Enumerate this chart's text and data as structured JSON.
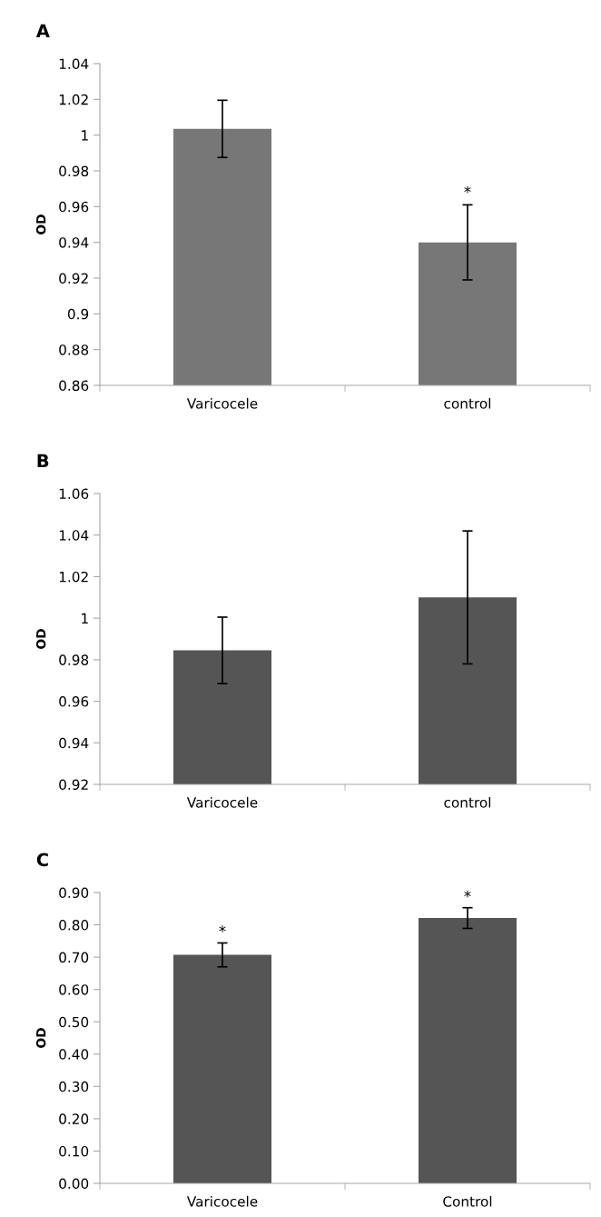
{
  "chart_data": [
    {
      "type": "bar",
      "title": "A",
      "ylabel": "OD",
      "categories": [
        "Varicocele",
        "control"
      ],
      "values": [
        1.0035,
        0.94
      ],
      "errors": [
        0.016,
        0.021
      ],
      "color": "#777777",
      "ylim": [
        0.86,
        1.04
      ],
      "yticks": [
        {
          "value": 0.86,
          "label": "0.86"
        },
        {
          "value": 0.88,
          "label": "0.88"
        },
        {
          "value": 0.9,
          "label": "0.9"
        },
        {
          "value": 0.92,
          "label": "0.92"
        },
        {
          "value": 0.94,
          "label": "0.94"
        },
        {
          "value": 0.96,
          "label": "0.96"
        },
        {
          "value": 0.98,
          "label": "0.98"
        },
        {
          "value": 1,
          "label": "1"
        },
        {
          "value": 1.02,
          "label": "1.02"
        },
        {
          "value": 1.04,
          "label": "1.04"
        }
      ],
      "grid": false,
      "legend": false,
      "annotations": [
        {
          "text": "*",
          "x": "control",
          "y": 0.962
        }
      ]
    },
    {
      "type": "bar",
      "title": "B",
      "ylabel": "OD",
      "categories": [
        "Varicocele",
        "control"
      ],
      "values": [
        0.9845,
        1.01
      ],
      "errors": [
        0.016,
        0.032
      ],
      "color": "#555555",
      "ylim": [
        0.92,
        1.06
      ],
      "yticks": [
        {
          "value": 0.92,
          "label": "0.92"
        },
        {
          "value": 0.94,
          "label": "0.94"
        },
        {
          "value": 0.96,
          "label": "0.96"
        },
        {
          "value": 0.98,
          "label": "0.98"
        },
        {
          "value": 1,
          "label": "1"
        },
        {
          "value": 1.02,
          "label": "1.02"
        },
        {
          "value": 1.04,
          "label": "1.04"
        },
        {
          "value": 1.06,
          "label": "1.06"
        }
      ],
      "grid": false,
      "legend": false
    },
    {
      "type": "bar",
      "title": "C",
      "ylabel": "OD",
      "categories": [
        "Varicocele",
        "Control"
      ],
      "values": [
        0.707,
        0.821
      ],
      "errors": [
        0.037,
        0.032
      ],
      "color": "#555555",
      "ylim": [
        0,
        0.9
      ],
      "yticks": [
        {
          "value": 0,
          "label": "0.00"
        },
        {
          "value": 0.1,
          "label": "0.10"
        },
        {
          "value": 0.2,
          "label": "0.20"
        },
        {
          "value": 0.3,
          "label": "0.30"
        },
        {
          "value": 0.4,
          "label": "0.40"
        },
        {
          "value": 0.5,
          "label": "0.50"
        },
        {
          "value": 0.6,
          "label": "0.60"
        },
        {
          "value": 0.7,
          "label": "0.70"
        },
        {
          "value": 0.8,
          "label": "0.80"
        },
        {
          "value": 0.9,
          "label": "0.90"
        }
      ],
      "grid": false,
      "legend": false,
      "annotations": [
        {
          "text": "*",
          "x": "Varicocele",
          "y": 0.746
        },
        {
          "text": "*",
          "x": "Control",
          "y": 0.854
        }
      ]
    }
  ]
}
